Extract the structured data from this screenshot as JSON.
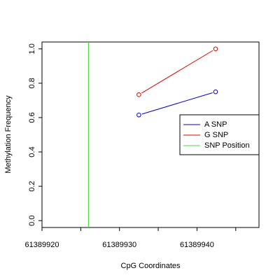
{
  "chart_data": {
    "type": "line",
    "title": "",
    "xlabel": "CpG Coordinates",
    "ylabel": "Methylation Frequency",
    "xlim": [
      61389920,
      61389948
    ],
    "ylim": [
      -0.04,
      1.04
    ],
    "x_ticks": [
      {
        "value": 61389920,
        "label": "61389920"
      },
      {
        "value": 61389925,
        "label": ""
      },
      {
        "value": 61389930,
        "label": "61389930"
      },
      {
        "value": 61389935,
        "label": ""
      },
      {
        "value": 61389940,
        "label": "61389940"
      },
      {
        "value": 61389945,
        "label": ""
      }
    ],
    "y_ticks": [
      {
        "value": 0.0,
        "label": "0.0"
      },
      {
        "value": 0.2,
        "label": "0.2"
      },
      {
        "value": 0.4,
        "label": "0.4"
      },
      {
        "value": 0.6,
        "label": "0.6"
      },
      {
        "value": 0.8,
        "label": "0.8"
      },
      {
        "value": 1.0,
        "label": "1.0"
      }
    ],
    "series": [
      {
        "name": "A SNP",
        "color": "#0000cc",
        "x": [
          61389932.5,
          61389942.4
        ],
        "y": [
          0.615,
          0.75
        ]
      },
      {
        "name": "G SNP",
        "color": "#dd0000",
        "x": [
          61389932.5,
          61389942.4
        ],
        "y": [
          0.733,
          1.0
        ]
      }
    ],
    "snp_position": {
      "name": "SNP Position",
      "color": "#44dd44",
      "x": 61389926
    },
    "legend": {
      "position": "right",
      "entries": [
        {
          "label": "A SNP",
          "color": "#0000cc"
        },
        {
          "label": "G SNP",
          "color": "#dd0000"
        },
        {
          "label": "SNP Position",
          "color": "#44dd44"
        }
      ]
    },
    "grid": false
  }
}
